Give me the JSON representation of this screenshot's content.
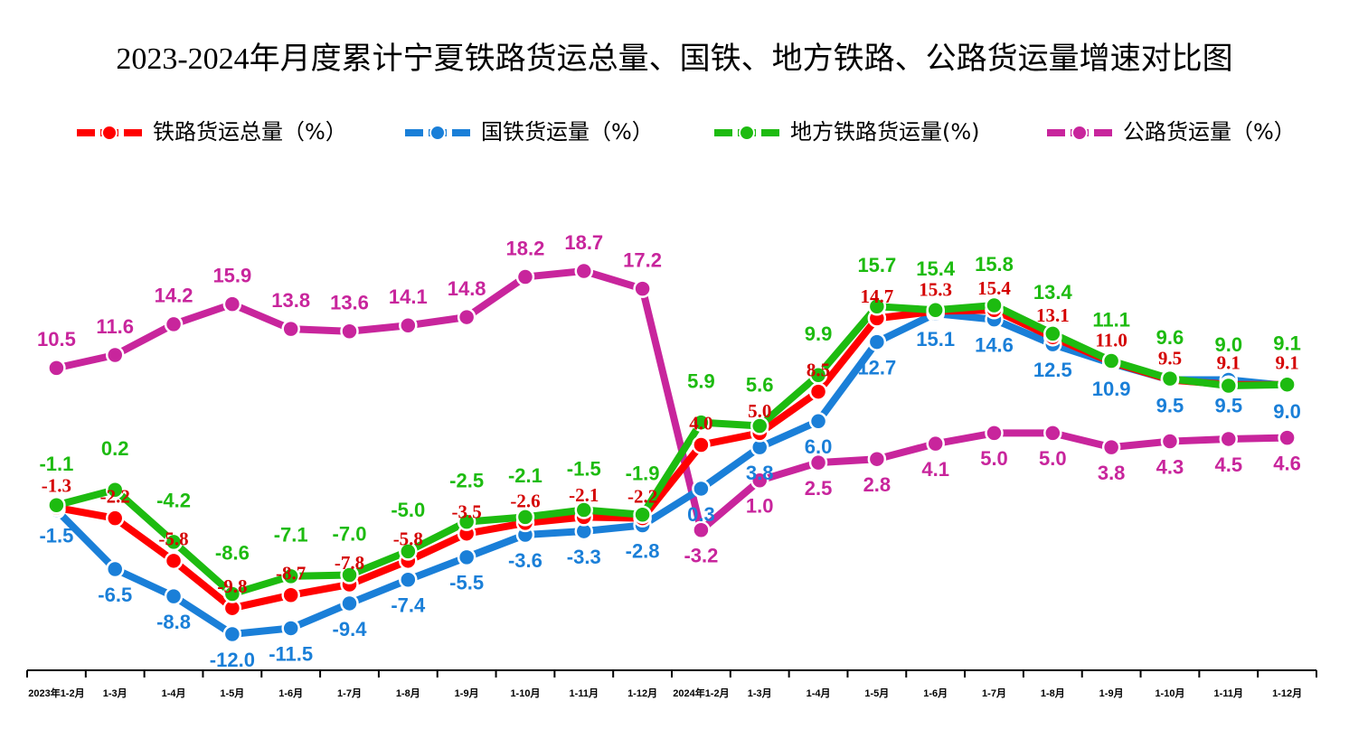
{
  "chart_data": {
    "type": "line",
    "title": "2023-2024年月度累计宁夏铁路货运总量、国铁、地方铁路、公路货运量增速对比图",
    "categories": [
      "2023年1-2月",
      "1-3月",
      "1-4月",
      "1-5月",
      "1-6月",
      "1-7月",
      "1-8月",
      "1-9月",
      "1-10月",
      "1-11月",
      "1-12月",
      "2024年1-2月",
      "1-3月",
      "1-4月",
      "1-5月",
      "1-6月",
      "1-7月",
      "1-8月",
      "1-9月",
      "1-10月",
      "1-11月",
      "1-12月"
    ],
    "series": [
      {
        "name": "铁路货运总量（%）",
        "color": "#ff0000",
        "values": [
          -1.3,
          -2.2,
          -5.8,
          -9.8,
          -8.7,
          -7.8,
          -5.8,
          -3.5,
          -2.6,
          -2.1,
          -2.2,
          4.0,
          5.0,
          8.5,
          14.7,
          15.3,
          15.4,
          13.1,
          11.0,
          9.5,
          9.1,
          9.1
        ]
      },
      {
        "name": "国铁货运量（%）",
        "color": "#1a7fd8",
        "values": [
          -1.5,
          -6.5,
          -8.8,
          -12.0,
          -11.5,
          -9.4,
          -7.4,
          -5.5,
          -3.6,
          -3.3,
          -2.8,
          0.3,
          3.8,
          6.0,
          12.7,
          15.1,
          14.6,
          12.5,
          10.9,
          9.5,
          9.5,
          9.0
        ]
      },
      {
        "name": "地方铁路货运量(%)",
        "color": "#1dbb10",
        "values": [
          -1.1,
          0.2,
          -4.2,
          -8.6,
          -7.1,
          -7.0,
          -5.0,
          -2.5,
          -2.1,
          -1.5,
          -1.9,
          5.9,
          5.6,
          9.9,
          15.7,
          15.4,
          15.8,
          13.4,
          11.1,
          9.6,
          9.0,
          9.1
        ]
      },
      {
        "name": "公路货运量（%）",
        "color": "#c8259c",
        "values": [
          10.5,
          11.6,
          14.2,
          15.9,
          13.8,
          13.6,
          14.1,
          14.8,
          18.2,
          18.7,
          17.2,
          -3.2,
          1.0,
          2.5,
          2.8,
          4.1,
          5.0,
          5.0,
          3.8,
          4.3,
          4.5,
          4.6
        ]
      }
    ]
  }
}
